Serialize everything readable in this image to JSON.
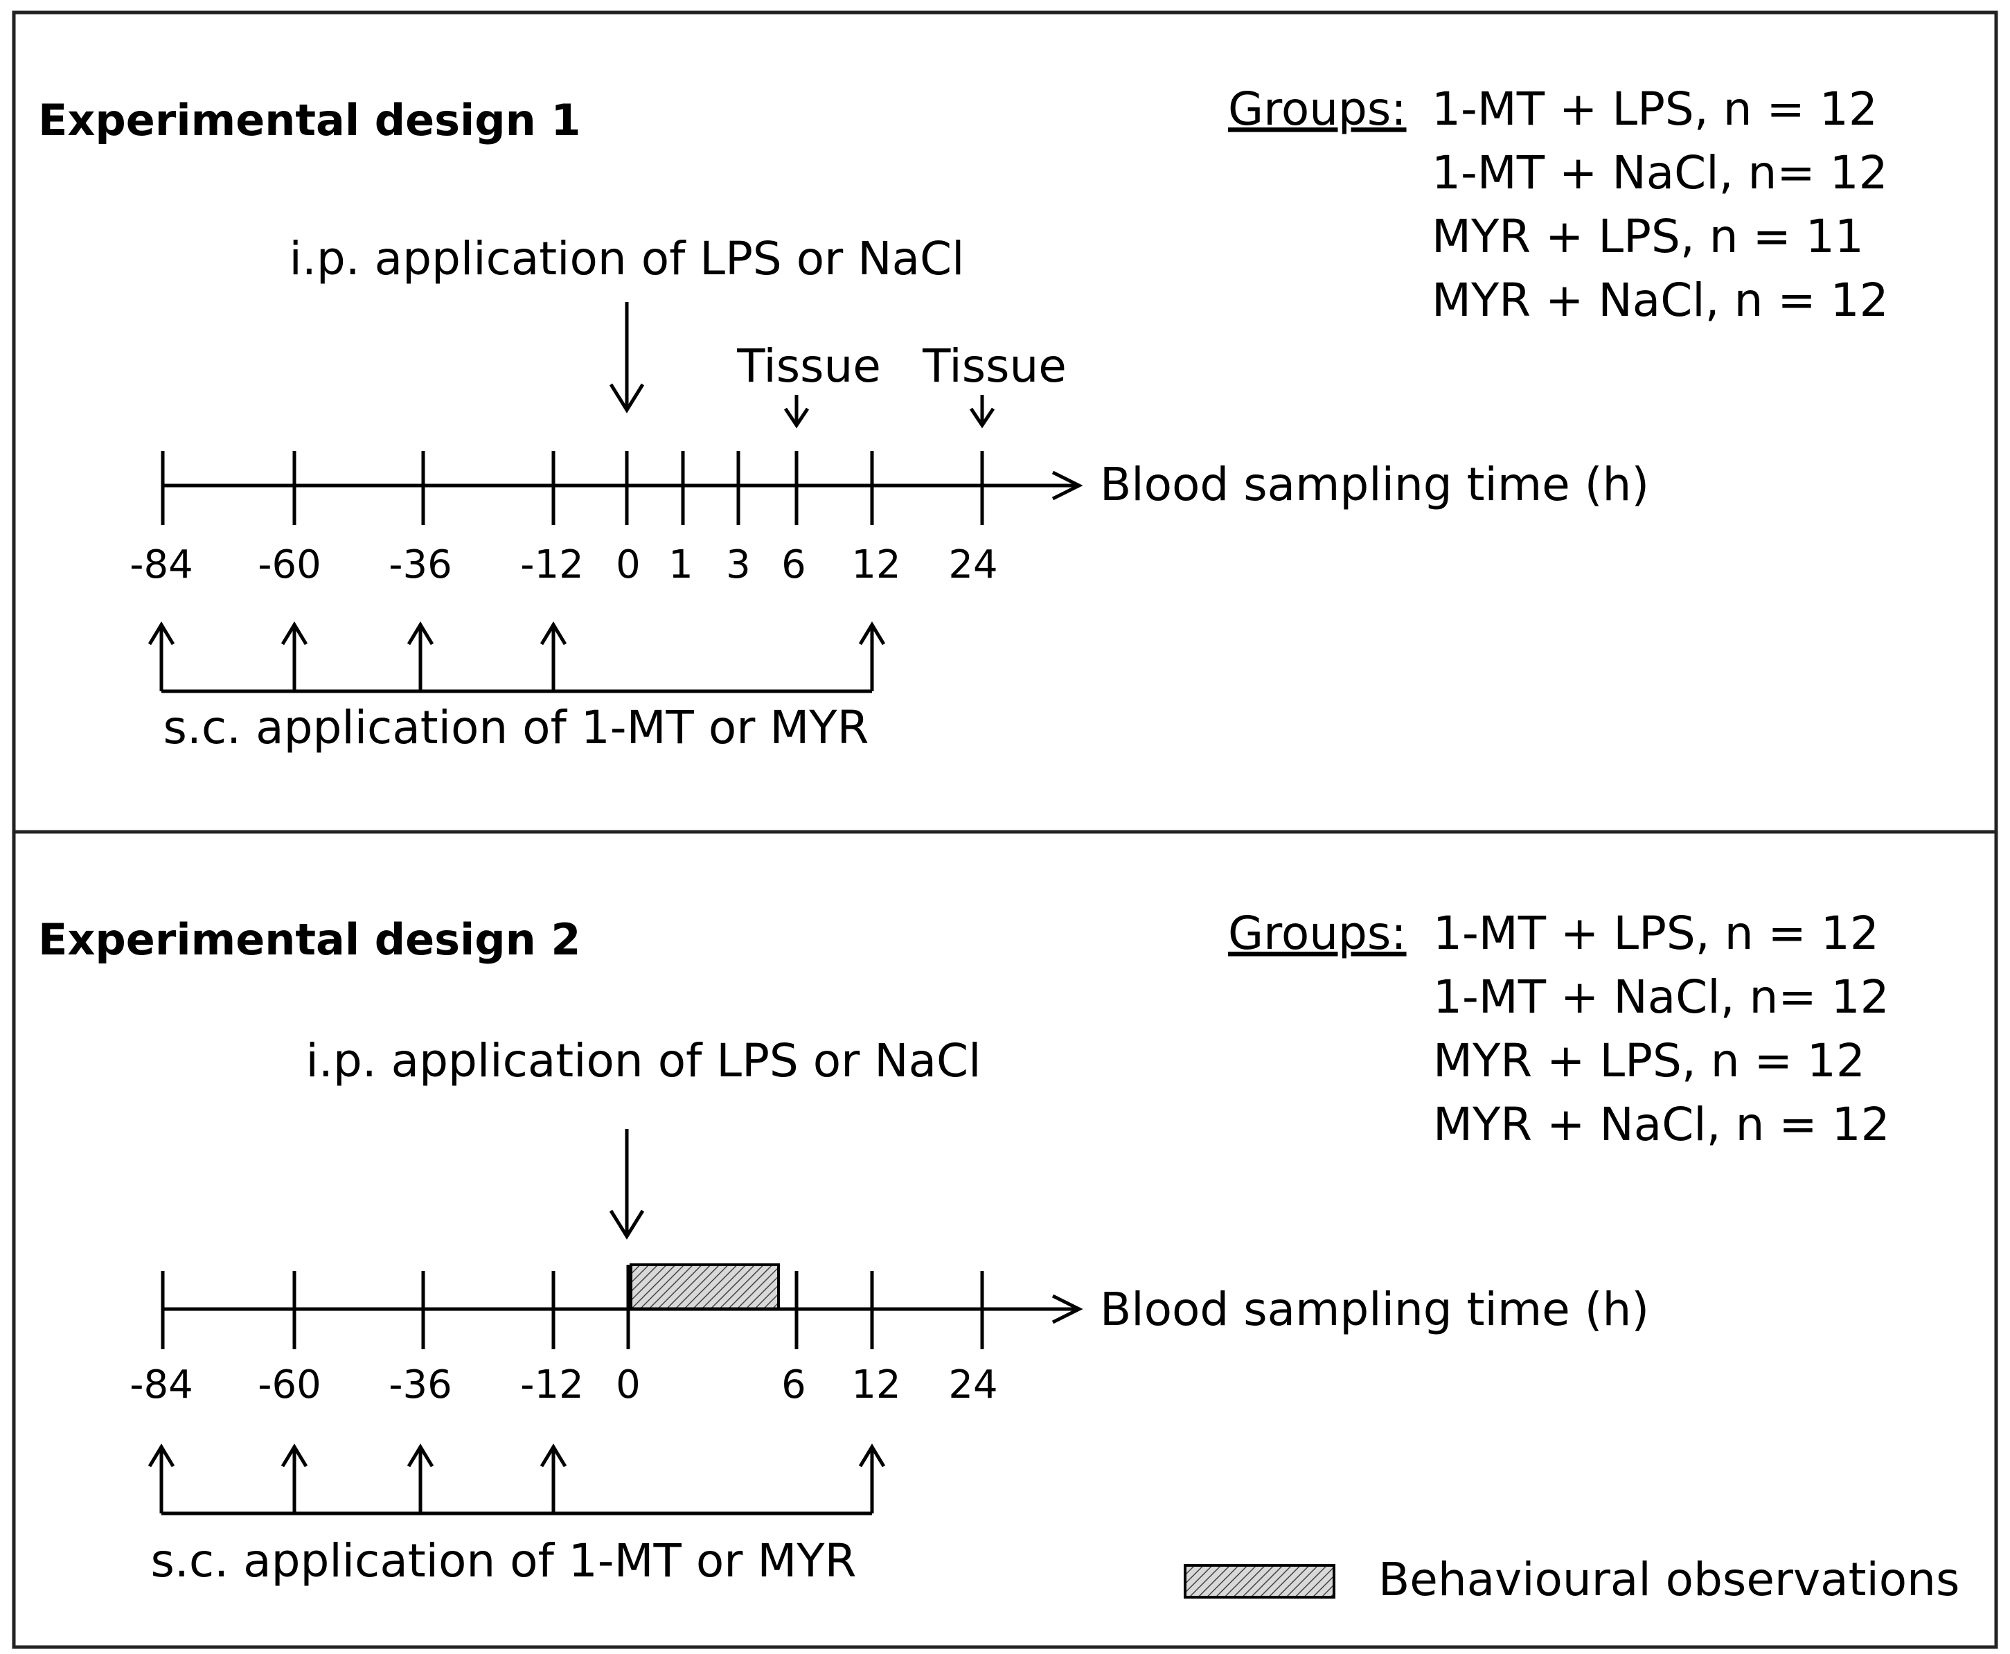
{
  "colors": {
    "line": "#000000",
    "frame": "#222222",
    "hatch_fill": "#d9d9d9"
  },
  "panels": [
    {
      "title": "Experimental design 1",
      "groups_label": "Groups:",
      "groups": [
        "1-MT + LPS, n = 12",
        "1-MT + NaCl, n= 12",
        "MYR + LPS, n = 11",
        "MYR + NaCl, n = 12"
      ],
      "ip_label": "i.p. application of LPS or NaCl",
      "tissue_labels": [
        "Tissue",
        "Tissue"
      ],
      "axis_label": "Blood sampling time (h)",
      "ticks": [
        "-84",
        "-60",
        "-36",
        "-12",
        "0",
        "1",
        "3",
        "6",
        "12",
        "24"
      ],
      "sc_label": "s.c. application of 1-MT or MYR"
    },
    {
      "title": "Experimental design 2",
      "groups_label": "Groups:",
      "groups": [
        "1-MT + LPS, n = 12",
        "1-MT + NaCl, n= 12",
        "MYR + LPS, n = 12",
        "MYR + NaCl, n = 12"
      ],
      "ip_label": "i.p. application of LPS or NaCl",
      "axis_label": "Blood sampling time (h)",
      "ticks": [
        "-84",
        "-60",
        "-36",
        "-12",
        "0",
        "6",
        "12",
        "24"
      ],
      "sc_label": "s.c. application of 1-MT or MYR",
      "legend_label": "Behavioural observations"
    }
  ]
}
